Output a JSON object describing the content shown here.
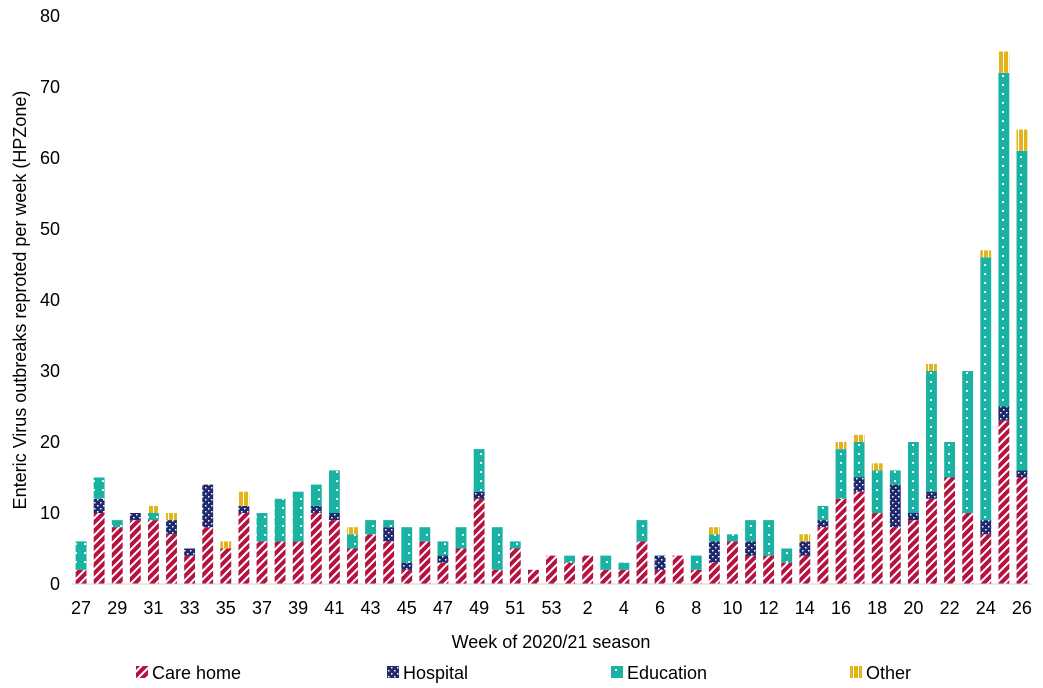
{
  "chart_data": {
    "type": "bar",
    "stacked": true,
    "title": "",
    "xlabel": "Week of 2020/21 season",
    "ylabel": "Enteric Virus outbreaks reproted per week (HPZone)",
    "ylim": [
      0,
      80
    ],
    "yticks": [
      0,
      10,
      20,
      30,
      40,
      50,
      60,
      70,
      80
    ],
    "grid": false,
    "legend_position": "bottom",
    "categories": [
      "27",
      "28",
      "29",
      "30",
      "31",
      "32",
      "33",
      "34",
      "35",
      "36",
      "37",
      "38",
      "39",
      "40",
      "41",
      "42",
      "43",
      "44",
      "45",
      "46",
      "47",
      "48",
      "49",
      "50",
      "51",
      "52",
      "53",
      "1",
      "2",
      "3",
      "4",
      "5",
      "6",
      "7",
      "8",
      "9",
      "10",
      "11",
      "12",
      "13",
      "14",
      "15",
      "16",
      "17",
      "18",
      "19",
      "20",
      "21",
      "22",
      "23",
      "24",
      "25",
      "26"
    ],
    "tick_labels": [
      "27",
      "",
      "29",
      "",
      "31",
      "",
      "33",
      "",
      "35",
      "",
      "37",
      "",
      "39",
      "",
      "41",
      "",
      "43",
      "",
      "45",
      "",
      "47",
      "",
      "49",
      "",
      "51",
      "",
      "53",
      "",
      "2",
      "",
      "4",
      "",
      "6",
      "",
      "8",
      "",
      "10",
      "",
      "12",
      "",
      "14",
      "",
      "16",
      "",
      "18",
      "",
      "20",
      "",
      "22",
      "",
      "24",
      "",
      "26"
    ],
    "series": [
      {
        "name": "Care home",
        "color": "#b5123f",
        "pattern": "diagonal",
        "values": [
          2,
          10,
          8,
          9,
          9,
          7,
          4,
          8,
          5,
          10,
          6,
          6,
          6,
          10,
          9,
          5,
          7,
          6,
          2,
          6,
          3,
          5,
          12,
          2,
          5,
          2,
          4,
          3,
          4,
          2,
          2,
          6,
          2,
          4,
          2,
          3,
          6,
          4,
          4,
          3,
          4,
          8,
          12,
          13,
          10,
          8,
          9,
          12,
          15,
          10,
          7,
          23,
          15
        ]
      },
      {
        "name": "Hospital",
        "color": "#1f2a6e",
        "pattern": "dots",
        "values": [
          0,
          2,
          0,
          1,
          0,
          2,
          1,
          6,
          0,
          1,
          0,
          0,
          0,
          1,
          1,
          0,
          0,
          2,
          1,
          0,
          1,
          0,
          1,
          0,
          0,
          0,
          0,
          0,
          0,
          0,
          0,
          0,
          2,
          0,
          0,
          3,
          0,
          2,
          0,
          0,
          2,
          1,
          0,
          2,
          0,
          6,
          1,
          1,
          0,
          0,
          2,
          2,
          1
        ]
      },
      {
        "name": "Education",
        "color": "#1ab2a3",
        "pattern": "dots",
        "values": [
          4,
          3,
          1,
          0,
          1,
          0,
          0,
          0,
          0,
          0,
          4,
          6,
          7,
          3,
          6,
          2,
          2,
          1,
          5,
          2,
          2,
          3,
          6,
          6,
          1,
          0,
          0,
          1,
          0,
          2,
          1,
          3,
          0,
          0,
          2,
          1,
          1,
          3,
          5,
          2,
          0,
          2,
          7,
          5,
          6,
          2,
          10,
          17,
          5,
          20,
          37,
          47,
          45
        ]
      },
      {
        "name": "Other",
        "color": "#e3b31a",
        "pattern": "stripes",
        "values": [
          0,
          0,
          0,
          0,
          1,
          1,
          0,
          0,
          1,
          2,
          0,
          0,
          0,
          0,
          0,
          1,
          0,
          0,
          0,
          0,
          0,
          0,
          0,
          0,
          0,
          0,
          0,
          0,
          0,
          0,
          0,
          0,
          0,
          0,
          0,
          1,
          0,
          0,
          0,
          0,
          1,
          0,
          1,
          1,
          1,
          0,
          0,
          1,
          0,
          0,
          1,
          3,
          3
        ]
      }
    ]
  }
}
